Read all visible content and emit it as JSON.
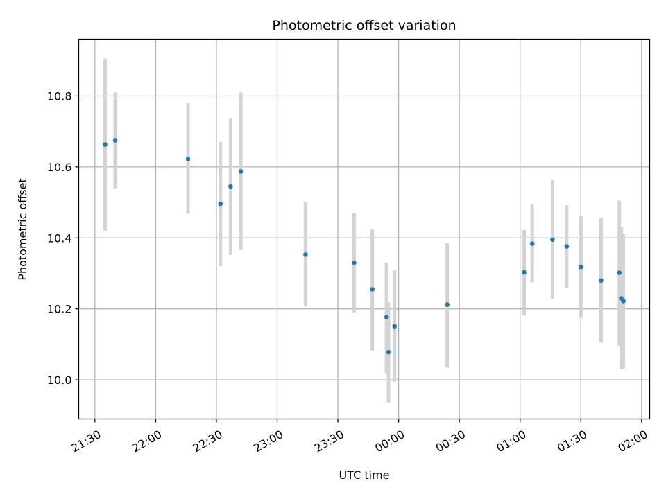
{
  "chart_data": {
    "type": "scatter",
    "title": "Photometric offset variation",
    "xlabel": "UTC time",
    "ylabel": "Photometric offset",
    "x_ticks": [
      "21:30",
      "22:00",
      "22:30",
      "23:00",
      "23:30",
      "00:00",
      "00:30",
      "01:00",
      "01:30",
      "02:00"
    ],
    "y_ticks": [
      "10.0",
      "10.2",
      "10.4",
      "10.6",
      "10.8"
    ],
    "xlim": [
      "21:22",
      "02:04"
    ],
    "ylim": [
      9.89,
      10.96
    ],
    "grid": true,
    "point_color": "#1f77b4",
    "errorbar_color": "#d3d3d3",
    "series": [
      {
        "points": [
          {
            "t": "21:35",
            "y": 10.663,
            "lo": 10.42,
            "hi": 10.905
          },
          {
            "t": "21:40",
            "y": 10.675,
            "lo": 10.54,
            "hi": 10.81
          },
          {
            "t": "22:16",
            "y": 10.622,
            "lo": 10.468,
            "hi": 10.78
          },
          {
            "t": "22:32",
            "y": 10.496,
            "lo": 10.32,
            "hi": 10.67
          },
          {
            "t": "22:37",
            "y": 10.545,
            "lo": 10.352,
            "hi": 10.738
          },
          {
            "t": "22:42",
            "y": 10.587,
            "lo": 10.366,
            "hi": 10.81
          },
          {
            "t": "23:14",
            "y": 10.353,
            "lo": 10.207,
            "hi": 10.5
          },
          {
            "t": "23:38",
            "y": 10.33,
            "lo": 10.19,
            "hi": 10.47
          },
          {
            "t": "23:47",
            "y": 10.255,
            "lo": 10.082,
            "hi": 10.424
          },
          {
            "t": "23:54",
            "y": 10.177,
            "lo": 10.02,
            "hi": 10.33
          },
          {
            "t": "23:55",
            "y": 10.078,
            "lo": 9.936,
            "hi": 10.218
          },
          {
            "t": "23:58",
            "y": 10.151,
            "lo": 9.995,
            "hi": 10.308
          },
          {
            "t": "00:24",
            "y": 10.212,
            "lo": 10.035,
            "hi": 10.385
          },
          {
            "t": "01:02",
            "y": 10.303,
            "lo": 10.182,
            "hi": 10.422
          },
          {
            "t": "01:06",
            "y": 10.384,
            "lo": 10.275,
            "hi": 10.494
          },
          {
            "t": "01:16",
            "y": 10.395,
            "lo": 10.228,
            "hi": 10.564
          },
          {
            "t": "01:23",
            "y": 10.376,
            "lo": 10.26,
            "hi": 10.492
          },
          {
            "t": "01:30",
            "y": 10.318,
            "lo": 10.174,
            "hi": 10.461
          },
          {
            "t": "01:40",
            "y": 10.28,
            "lo": 10.105,
            "hi": 10.455
          },
          {
            "t": "01:49",
            "y": 10.302,
            "lo": 10.096,
            "hi": 10.505
          },
          {
            "t": "01:50",
            "y": 10.23,
            "lo": 10.03,
            "hi": 10.43
          },
          {
            "t": "01:51",
            "y": 10.222,
            "lo": 10.032,
            "hi": 10.41
          }
        ]
      }
    ]
  }
}
